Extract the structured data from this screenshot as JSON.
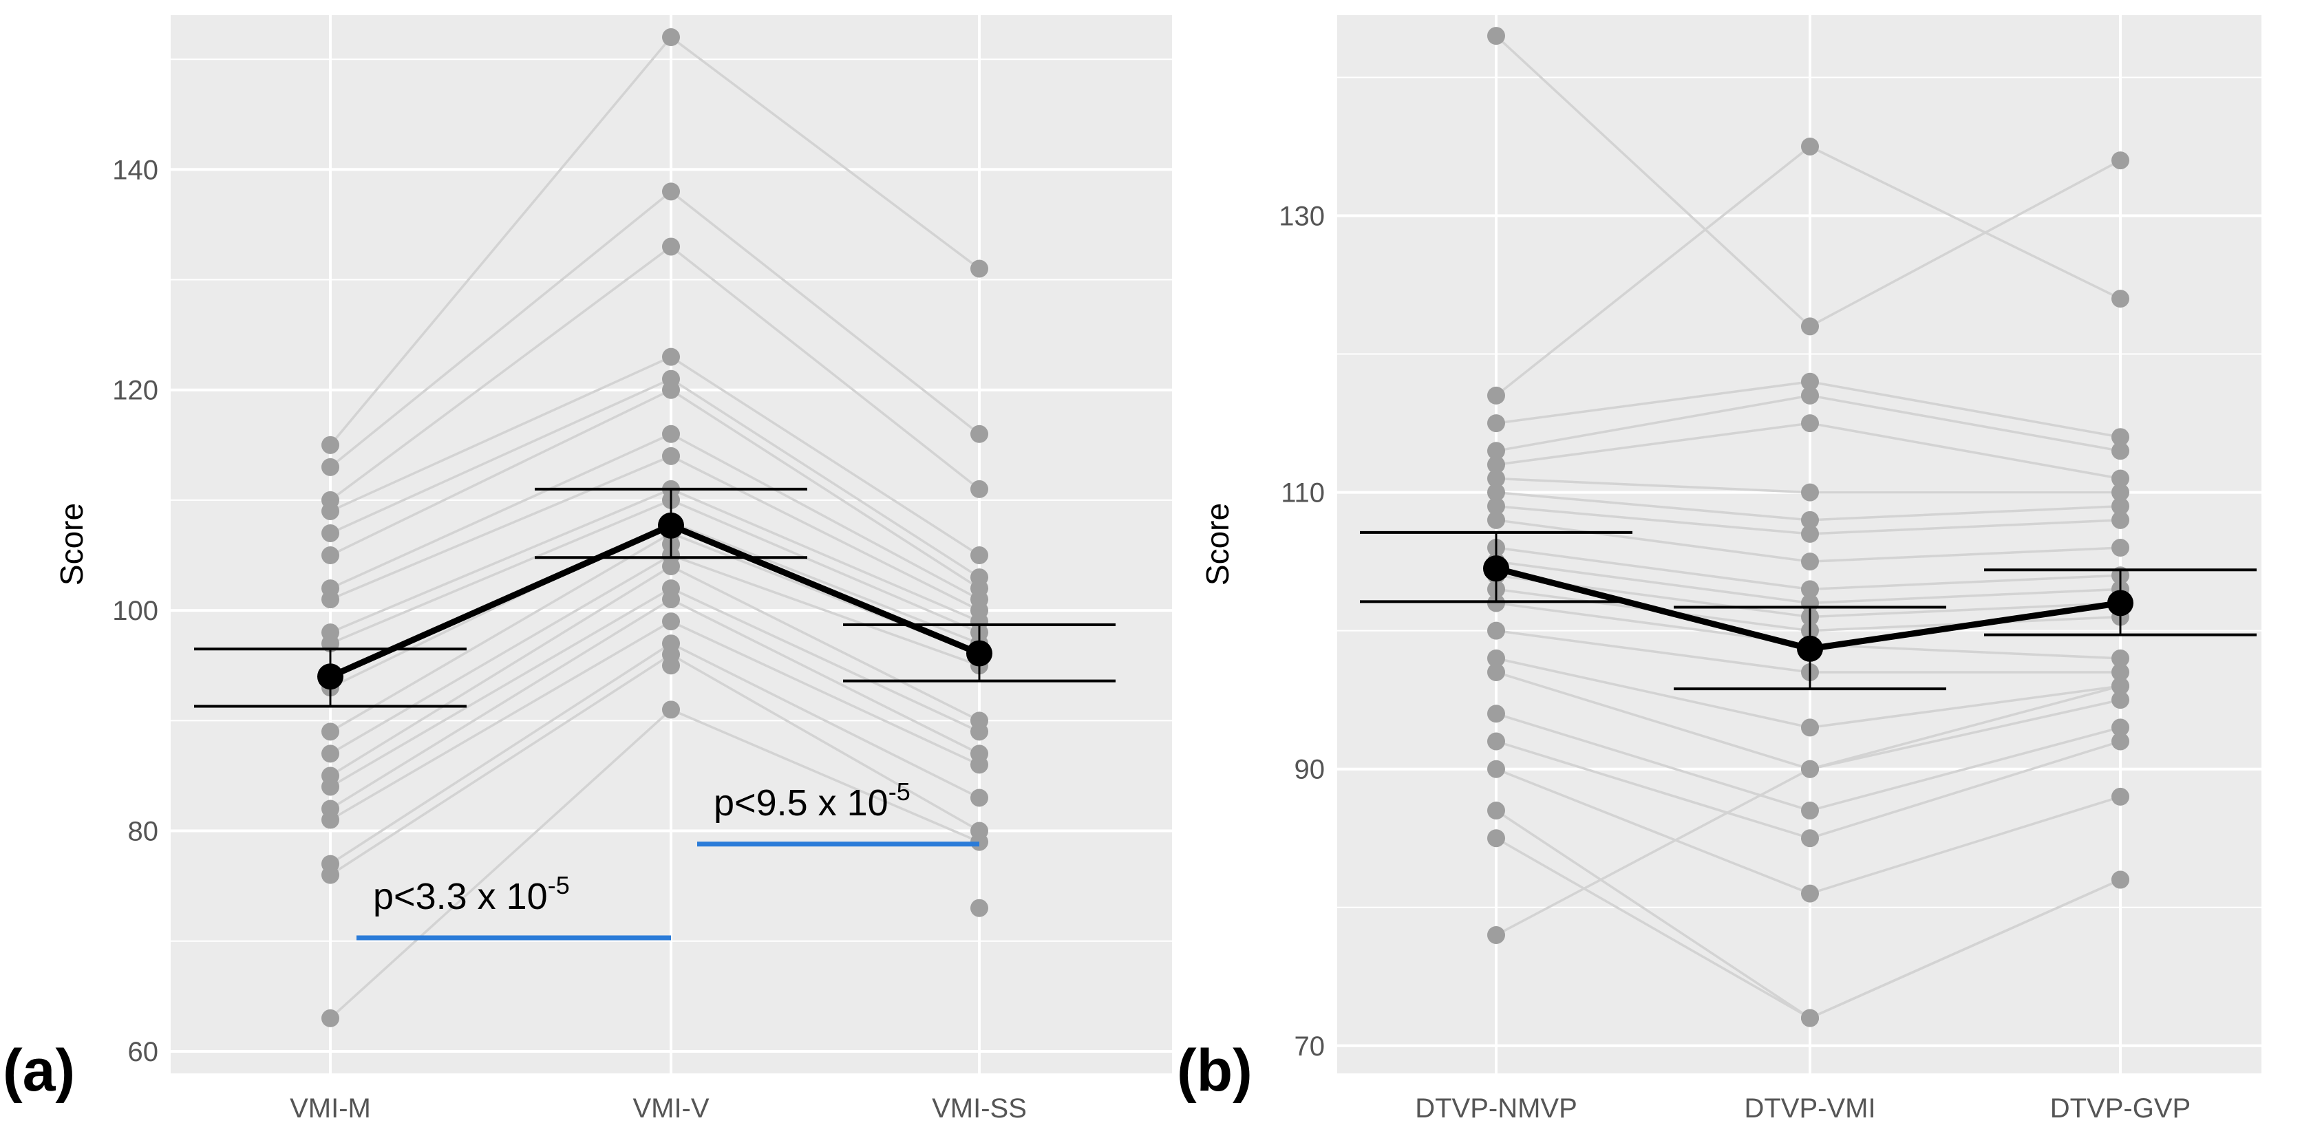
{
  "chart_data": [
    {
      "type": "line",
      "panel_label": "(a)",
      "ylabel": "Score",
      "xlabel": "",
      "categories": [
        "VMI-M",
        "VMI-V",
        "VMI-SS"
      ],
      "ylim": [
        58,
        154
      ],
      "yticks": [
        60,
        80,
        100,
        120,
        140
      ],
      "subject_series": [
        [
          115,
          152,
          131
        ],
        [
          113,
          138,
          116
        ],
        [
          110,
          133,
          111
        ],
        [
          109,
          123,
          105
        ],
        [
          107,
          121,
          103
        ],
        [
          105,
          120,
          102
        ],
        [
          102,
          116,
          101
        ],
        [
          101,
          114,
          100
        ],
        [
          98,
          111,
          99
        ],
        [
          97,
          110,
          98
        ],
        [
          93,
          108,
          97
        ],
        [
          89,
          107,
          96
        ],
        [
          87,
          105,
          95
        ],
        [
          85,
          104,
          90
        ],
        [
          84,
          102,
          89
        ],
        [
          82,
          101,
          87
        ],
        [
          81,
          99,
          86
        ],
        [
          77,
          97,
          83
        ],
        [
          76,
          96,
          80
        ],
        [
          63,
          91,
          79
        ]
      ],
      "subject_extra_points": [
        {
          "category": "VMI-SS",
          "value": 73
        },
        {
          "category": "VMI-V",
          "value": 95
        },
        {
          "category": "VMI-V",
          "value": 106
        }
      ],
      "mean_series": {
        "values": [
          94,
          107.7,
          96.1
        ]
      },
      "error_bars": [
        {
          "lower": 91.3,
          "upper": 96.5
        },
        {
          "lower": 104.8,
          "upper": 111
        },
        {
          "lower": 93.6,
          "upper": 98.7
        }
      ],
      "annotations": [
        {
          "from": "VMI-M",
          "to": "VMI-V",
          "y": 70.3,
          "text_main": "p<3.3 x 10",
          "text_sup": "-5"
        },
        {
          "from": "VMI-V",
          "to": "VMI-SS",
          "y": 78.8,
          "text_main": "p<9.5 x 10",
          "text_sup": "-5"
        }
      ]
    },
    {
      "type": "line",
      "panel_label": "(b)",
      "ylabel": "Score",
      "xlabel": "",
      "categories": [
        "DTVP-NMVP",
        "DTVP-VMI",
        "DTVP-GVP"
      ],
      "ylim": [
        68,
        144.5
      ],
      "yticks": [
        70,
        90,
        110,
        130
      ],
      "subject_series": [
        [
          143,
          122,
          134
        ],
        [
          117,
          135,
          124
        ],
        [
          115,
          118,
          114
        ],
        [
          113,
          117,
          113
        ],
        [
          112,
          115,
          111
        ],
        [
          111,
          110,
          110
        ],
        [
          110,
          108,
          109
        ],
        [
          109,
          107,
          108
        ],
        [
          108,
          105,
          106
        ],
        [
          106,
          103,
          104
        ],
        [
          105,
          102,
          103
        ],
        [
          104,
          101,
          102
        ],
        [
          103,
          100,
          101
        ],
        [
          102,
          99,
          98
        ],
        [
          100,
          97,
          97
        ],
        [
          98,
          93,
          96
        ],
        [
          97,
          90,
          95
        ],
        [
          94,
          87,
          93
        ],
        [
          92,
          85,
          92
        ],
        [
          90,
          81,
          88
        ],
        [
          87,
          72,
          82
        ],
        [
          85,
          72,
          82
        ],
        [
          78,
          90,
          96
        ]
      ],
      "mean_series": {
        "values": [
          104.5,
          98.7,
          102
        ]
      },
      "error_bars": [
        {
          "lower": 102.1,
          "upper": 107.1
        },
        {
          "lower": 95.8,
          "upper": 101.7
        },
        {
          "lower": 99.7,
          "upper": 104.4
        }
      ],
      "annotations": []
    }
  ],
  "colors": {
    "panel_background": "#ebebeb",
    "gridline": "#ffffff",
    "subject_line": "#d3d3d3",
    "subject_point": "#9e9e9e",
    "mean": "#000000",
    "significance_bar": "#2a7bd8"
  }
}
